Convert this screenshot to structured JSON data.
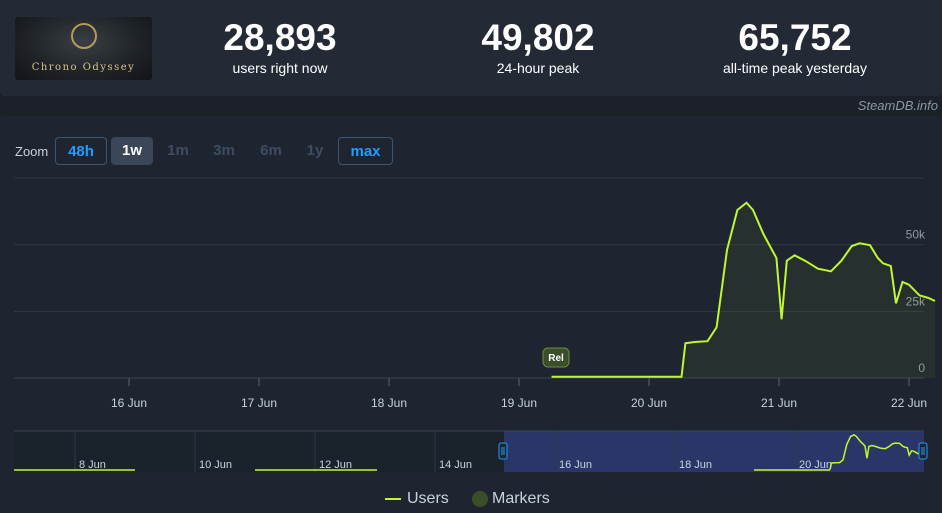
{
  "game": {
    "logo_text": "Chrono Odyssey"
  },
  "stats": [
    {
      "value": "28,893",
      "label": "users right now"
    },
    {
      "value": "49,802",
      "label": "24-hour peak"
    },
    {
      "value": "65,752",
      "label": "all-time peak yesterday"
    }
  ],
  "credit": "SteamDB.info",
  "zoom": {
    "label": "Zoom",
    "options": [
      "48h",
      "1w",
      "1m",
      "3m",
      "6m",
      "1y",
      "max"
    ],
    "selected": "1w",
    "highlighted": [
      "48h",
      "max"
    ]
  },
  "colors": {
    "users_line": "#bff730",
    "marker": "#3b4e2a",
    "accent": "#1a9fff",
    "navigator_selection": "#2f3a73"
  },
  "legend": {
    "users": "Users",
    "markers": "Markers"
  },
  "navigator": {
    "tick_labels": [
      "8 Jun",
      "10 Jun",
      "12 Jun",
      "14 Jun",
      "16 Jun",
      "18 Jun",
      "20 Jun"
    ]
  },
  "chart_data": {
    "type": "line",
    "x_ticks": [
      "16 Jun",
      "17 Jun",
      "18 Jun",
      "19 Jun",
      "20 Jun",
      "21 Jun",
      "22 Jun"
    ],
    "y_ticks": [
      0,
      25000,
      50000
    ],
    "y_tick_labels": [
      "0",
      "25k",
      "50k"
    ],
    "ylim": [
      0,
      75000
    ],
    "grid": true,
    "legend_placement": "bottom-center",
    "markers": [
      {
        "x": "19 Jun 06:00",
        "label": "Rel"
      }
    ],
    "series": [
      {
        "name": "Users",
        "x_days": [
          19.25,
          19.5,
          20.0,
          20.25,
          20.28,
          20.35,
          20.45,
          20.52,
          20.6,
          20.68,
          20.75,
          20.8,
          20.88,
          20.98,
          21.02,
          21.06,
          21.12,
          21.2,
          21.3,
          21.4,
          21.48,
          21.56,
          21.62,
          21.7,
          21.76,
          21.8,
          21.86,
          21.9,
          21.95,
          22.0,
          22.08,
          22.15,
          22.2
        ],
        "values": [
          500,
          500,
          500,
          500,
          13000,
          13500,
          13800,
          19000,
          48000,
          63000,
          65752,
          63000,
          54000,
          45000,
          22000,
          44000,
          46000,
          44000,
          41000,
          40000,
          44000,
          49500,
          50500,
          49800,
          45000,
          43000,
          42000,
          28000,
          36000,
          35000,
          31000,
          30000,
          28893
        ]
      }
    ]
  }
}
